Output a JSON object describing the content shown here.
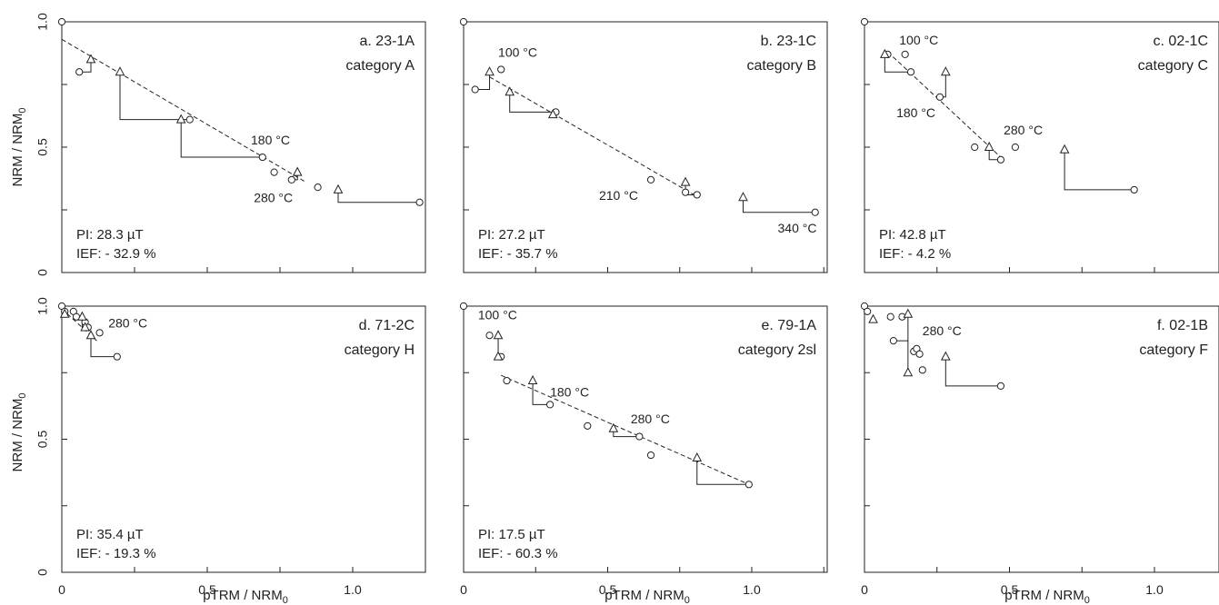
{
  "colors": {
    "ink": "#222222",
    "background": "#ffffff"
  },
  "axis_text": {
    "ylabel_main": "NRM / NRM",
    "ylabel_sub": "0",
    "xlabel_main": "pTRM / NRM",
    "xlabel_sub": "0"
  },
  "chart_data": [
    {
      "type": "scatter",
      "panel": "a",
      "title": "a. 23-1A",
      "category": "category A",
      "xlim": [
        0,
        1.25
      ],
      "ylim": [
        0,
        1.0
      ],
      "xticks": [
        "0",
        "0.5",
        "1.0"
      ],
      "yticks": [
        "0",
        "0.5",
        "1.0"
      ],
      "pi": "PI: 28.3 µT",
      "ief": "IEF: - 32.9 %",
      "nrm_ptrm": [
        [
          0,
          1.0
        ],
        [
          0.06,
          0.8
        ],
        [
          0.44,
          0.61
        ],
        [
          0.69,
          0.46
        ],
        [
          0.73,
          0.4
        ],
        [
          0.79,
          0.37
        ],
        [
          0.88,
          0.34
        ],
        [
          1.23,
          0.28
        ]
      ],
      "ptrm_checks": [
        [
          0.1,
          0.85
        ],
        [
          0.2,
          0.8
        ],
        [
          0.41,
          0.61
        ],
        [
          0.81,
          0.4
        ],
        [
          0.95,
          0.33
        ]
      ],
      "check_lines": [
        [
          [
            0.06,
            0.8
          ],
          [
            0.1,
            0.8
          ],
          [
            0.1,
            0.85
          ]
        ],
        [
          [
            0.44,
            0.61
          ],
          [
            0.2,
            0.61
          ],
          [
            0.2,
            0.8
          ]
        ],
        [
          [
            0.69,
            0.46
          ],
          [
            0.41,
            0.46
          ],
          [
            0.41,
            0.61
          ]
        ],
        [
          [
            0.79,
            0.37
          ],
          [
            0.81,
            0.37
          ],
          [
            0.81,
            0.4
          ]
        ],
        [
          [
            1.23,
            0.28
          ],
          [
            0.95,
            0.28
          ],
          [
            0.95,
            0.33
          ]
        ]
      ],
      "fit_line": [
        [
          0,
          0.93
        ],
        [
          0.84,
          0.36
        ]
      ],
      "annotations": [
        {
          "text": "180 °C",
          "x": 0.65,
          "y": 0.51
        },
        {
          "text": "280 °C",
          "x": 0.66,
          "y": 0.28
        }
      ],
      "xlabel": "pTRM / NRM0",
      "ylabel": "NRM / NRM0"
    },
    {
      "type": "scatter",
      "panel": "b",
      "title": "b. 23-1C",
      "category": "category B",
      "xlim": [
        0,
        1.25
      ],
      "ylim": [
        0,
        1.0
      ],
      "xticks": [
        "0",
        "0.5",
        "1.0"
      ],
      "yticks": [
        "0",
        "0.5",
        "1.0"
      ],
      "pi": "PI: 27.2 µT",
      "ief": "IEF: - 35.7 %",
      "nrm_ptrm": [
        [
          0,
          1.0
        ],
        [
          0.04,
          0.73
        ],
        [
          0.13,
          0.81
        ],
        [
          0.32,
          0.64
        ],
        [
          0.65,
          0.37
        ],
        [
          0.77,
          0.32
        ],
        [
          0.81,
          0.31
        ],
        [
          1.22,
          0.24
        ]
      ],
      "ptrm_checks": [
        [
          0.09,
          0.8
        ],
        [
          0.16,
          0.72
        ],
        [
          0.31,
          0.63
        ],
        [
          0.77,
          0.36
        ],
        [
          0.97,
          0.3
        ]
      ],
      "check_lines": [
        [
          [
            0.04,
            0.73
          ],
          [
            0.09,
            0.73
          ],
          [
            0.09,
            0.8
          ]
        ],
        [
          [
            0.32,
            0.64
          ],
          [
            0.16,
            0.64
          ],
          [
            0.16,
            0.72
          ]
        ],
        [
          [
            0.81,
            0.31
          ],
          [
            0.77,
            0.31
          ],
          [
            0.77,
            0.36
          ]
        ],
        [
          [
            1.22,
            0.24
          ],
          [
            0.97,
            0.24
          ],
          [
            0.97,
            0.3
          ]
        ]
      ],
      "fit_line": [
        [
          0.09,
          0.78
        ],
        [
          0.8,
          0.31
        ]
      ],
      "annotations": [
        {
          "text": "100 °C",
          "x": 0.12,
          "y": 0.86
        },
        {
          "text": "210 °C",
          "x": 0.47,
          "y": 0.29
        },
        {
          "text": "340 °C",
          "x": 1.09,
          "y": 0.16
        }
      ],
      "xlabel": "pTRM / NRM0",
      "ylabel": "NRM / NRM0"
    },
    {
      "type": "scatter",
      "panel": "c",
      "title": "c. 02-1C",
      "category": "category C",
      "xlim": [
        0,
        1.25
      ],
      "ylim": [
        0,
        1.0
      ],
      "xticks": [
        "0",
        "0.5",
        "1.0"
      ],
      "yticks": [
        "0",
        "0.5",
        "1.0"
      ],
      "pi": "PI: 42.8 µT",
      "ief": "IEF: - 4.2 %",
      "nrm_ptrm": [
        [
          0,
          1.0
        ],
        [
          0.08,
          0.87
        ],
        [
          0.14,
          0.87
        ],
        [
          0.16,
          0.8
        ],
        [
          0.26,
          0.7
        ],
        [
          0.38,
          0.5
        ],
        [
          0.47,
          0.45
        ],
        [
          0.52,
          0.5
        ],
        [
          0.93,
          0.33
        ]
      ],
      "ptrm_checks": [
        [
          0.07,
          0.87
        ],
        [
          0.28,
          0.8
        ],
        [
          0.43,
          0.5
        ],
        [
          0.69,
          0.49
        ]
      ],
      "check_lines": [
        [
          [
            0.16,
            0.8
          ],
          [
            0.07,
            0.8
          ],
          [
            0.07,
            0.87
          ]
        ],
        [
          [
            0.26,
            0.7
          ],
          [
            0.28,
            0.7
          ],
          [
            0.28,
            0.8
          ]
        ],
        [
          [
            0.47,
            0.45
          ],
          [
            0.43,
            0.45
          ],
          [
            0.43,
            0.5
          ]
        ],
        [
          [
            0.93,
            0.33
          ],
          [
            0.69,
            0.33
          ],
          [
            0.69,
            0.49
          ]
        ]
      ],
      "fit_line": [
        [
          0.08,
          0.88
        ],
        [
          0.47,
          0.46
        ]
      ],
      "annotations": [
        {
          "text": "100 °C",
          "x": 0.12,
          "y": 0.91
        },
        {
          "text": "180 °C",
          "x": 0.11,
          "y": 0.62
        },
        {
          "text": "280 °C",
          "x": 0.48,
          "y": 0.55
        }
      ],
      "xlabel": "pTRM / NRM0",
      "ylabel": "NRM / NRM0"
    },
    {
      "type": "scatter",
      "panel": "d",
      "title": "d. 71-2C",
      "category": "category H",
      "xlim": [
        0,
        1.25
      ],
      "ylim": [
        0,
        1.0
      ],
      "xticks": [
        "0",
        "0.5",
        "1.0"
      ],
      "yticks": [
        "0",
        "0.5",
        "1.0"
      ],
      "pi": "PI: 35.4 µT",
      "ief": "IEF: - 19.3 %",
      "nrm_ptrm": [
        [
          0,
          1.0
        ],
        [
          0.01,
          0.98
        ],
        [
          0.04,
          0.98
        ],
        [
          0.05,
          0.96
        ],
        [
          0.08,
          0.94
        ],
        [
          0.09,
          0.92
        ],
        [
          0.13,
          0.9
        ],
        [
          0.19,
          0.81
        ]
      ],
      "ptrm_checks": [
        [
          0.01,
          0.97
        ],
        [
          0.07,
          0.96
        ],
        [
          0.08,
          0.92
        ],
        [
          0.1,
          0.89
        ]
      ],
      "check_lines": [
        [
          [
            0.09,
            0.92
          ],
          [
            0.07,
            0.92
          ],
          [
            0.07,
            0.96
          ]
        ],
        [
          [
            0.19,
            0.81
          ],
          [
            0.1,
            0.81
          ],
          [
            0.1,
            0.89
          ]
        ]
      ],
      "fit_line": [
        [
          0,
          0.99
        ],
        [
          0.12,
          0.87
        ]
      ],
      "annotations": [
        {
          "text": "280 °C",
          "x": 0.16,
          "y": 0.92
        }
      ],
      "xlabel": "pTRM / NRM0",
      "ylabel": "NRM / NRM0"
    },
    {
      "type": "scatter",
      "panel": "e",
      "title": "e. 79-1A",
      "category": "category 2sl",
      "xlim": [
        0,
        1.25
      ],
      "ylim": [
        0,
        1.0
      ],
      "xticks": [
        "0",
        "0.5",
        "1.0"
      ],
      "yticks": [
        "0",
        "0.5",
        "1.0"
      ],
      "pi": "PI: 17.5 µT",
      "ief": "IEF: - 60.3 %",
      "nrm_ptrm": [
        [
          0,
          1.0
        ],
        [
          0.09,
          0.89
        ],
        [
          0.13,
          0.81
        ],
        [
          0.15,
          0.72
        ],
        [
          0.3,
          0.63
        ],
        [
          0.43,
          0.55
        ],
        [
          0.61,
          0.51
        ],
        [
          0.65,
          0.44
        ],
        [
          0.99,
          0.33
        ]
      ],
      "ptrm_checks": [
        [
          0.12,
          0.89
        ],
        [
          0.12,
          0.81
        ],
        [
          0.24,
          0.72
        ],
        [
          0.52,
          0.54
        ],
        [
          0.81,
          0.43
        ]
      ],
      "check_lines": [
        [
          [
            0.13,
            0.81
          ],
          [
            0.12,
            0.81
          ],
          [
            0.12,
            0.89
          ]
        ],
        [
          [
            0.3,
            0.63
          ],
          [
            0.24,
            0.63
          ],
          [
            0.24,
            0.72
          ]
        ],
        [
          [
            0.61,
            0.51
          ],
          [
            0.52,
            0.51
          ],
          [
            0.52,
            0.54
          ]
        ],
        [
          [
            0.99,
            0.33
          ],
          [
            0.81,
            0.33
          ],
          [
            0.81,
            0.43
          ]
        ]
      ],
      "fit_line": [
        [
          0.13,
          0.74
        ],
        [
          0.99,
          0.33
        ]
      ],
      "annotations": [
        {
          "text": "100 °C",
          "x": 0.05,
          "y": 0.95
        },
        {
          "text": "180 °C",
          "x": 0.3,
          "y": 0.66
        },
        {
          "text": "280 °C",
          "x": 0.58,
          "y": 0.56
        }
      ],
      "xlabel": "pTRM / NRM0",
      "ylabel": "NRM / NRM0"
    },
    {
      "type": "scatter",
      "panel": "f",
      "title": "f. 02-1B",
      "category": "category F",
      "xlim": [
        0,
        1.25
      ],
      "ylim": [
        0,
        1.0
      ],
      "xticks": [
        "0",
        "0.5",
        "1.0"
      ],
      "yticks": [
        "0",
        "0.5",
        "1.0"
      ],
      "pi": "",
      "ief": "",
      "nrm_ptrm": [
        [
          0,
          1.0
        ],
        [
          0.01,
          0.98
        ],
        [
          0.09,
          0.96
        ],
        [
          0.1,
          0.87
        ],
        [
          0.13,
          0.96
        ],
        [
          0.17,
          0.83
        ],
        [
          0.18,
          0.84
        ],
        [
          0.19,
          0.82
        ],
        [
          0.2,
          0.76
        ],
        [
          0.47,
          0.7
        ]
      ],
      "ptrm_checks": [
        [
          0.03,
          0.95
        ],
        [
          0.15,
          0.97
        ],
        [
          0.15,
          0.75
        ],
        [
          0.28,
          0.81
        ]
      ],
      "check_lines": [
        [
          [
            0.1,
            0.87
          ],
          [
            0.15,
            0.87
          ],
          [
            0.15,
            0.97
          ]
        ],
        [
          [
            0.15,
            0.75
          ],
          [
            0.15,
            0.87
          ]
        ],
        [
          [
            0.47,
            0.7
          ],
          [
            0.28,
            0.7
          ],
          [
            0.28,
            0.81
          ]
        ]
      ],
      "fit_line": [],
      "annotations": [
        {
          "text": "280 °C",
          "x": 0.2,
          "y": 0.89
        }
      ],
      "xlabel": "pTRM / NRM0",
      "ylabel": "NRM / NRM0"
    }
  ]
}
